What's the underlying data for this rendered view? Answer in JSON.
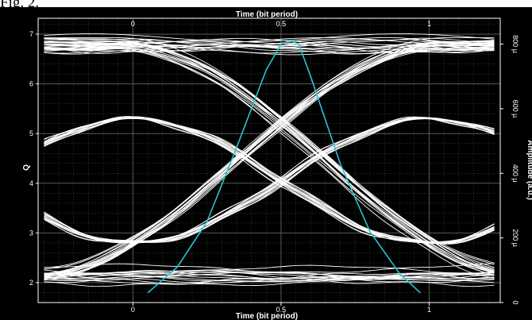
{
  "caption": "Fig. 2.",
  "chart_data": {
    "type": "line",
    "title": "",
    "xlabel_top": "Time (bit period)",
    "xlabel_bottom": "Time (bit period)",
    "ylabel_left": "Q",
    "ylabel_right": "Amplitude (a.u.)",
    "x_ticks_bottom": [
      "0",
      "0.5",
      "1"
    ],
    "x_ticks_top": [
      "0",
      "0.5",
      "1"
    ],
    "y_ticks_left": [
      "2",
      "3",
      "4",
      "5",
      "6",
      "7"
    ],
    "y_ticks_right": [
      "0",
      "200 µ",
      "400 µ",
      "600 µ",
      "800 µ"
    ],
    "xlim": [
      -0.32,
      1.24
    ],
    "ylim_left": [
      1.6,
      7.32
    ],
    "ylim_right": [
      0,
      880
    ],
    "grid": true,
    "colors": {
      "background": "#000000",
      "eye": "#ffffff",
      "histogram": "#22c8d2",
      "grid": "#5a5a5a"
    },
    "series": [
      {
        "description_role": "eye-diagram",
        "levels": {
          "high": 6.8,
          "low": 2.15,
          "crossing_mid": 4.05,
          "crossing_x": [
            0.0,
            1.0
          ],
          "upper_cross_x": 0.49,
          "lower_cross_x": 0.56
        },
        "trace_count": 16
      },
      {
        "description_role": "histogram",
        "x": [
          0.05,
          0.15,
          0.25,
          0.35,
          0.45,
          0.5,
          0.53,
          0.56,
          0.6,
          0.7,
          0.8,
          0.9,
          0.97
        ],
        "y": [
          30,
          110,
          250,
          480,
          720,
          800,
          810,
          800,
          700,
          430,
          220,
          90,
          30
        ]
      }
    ]
  }
}
